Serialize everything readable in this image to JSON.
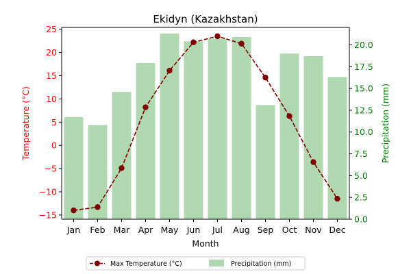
{
  "chart_data": {
    "type": "bar+line",
    "title": "Ekidyn (Kazakhstan)",
    "xlabel": "Month",
    "ylabel_left": "Temperature (°C)",
    "ylabel_right": "Precipitation (mm)",
    "categories": [
      "Jan",
      "Feb",
      "Mar",
      "Apr",
      "May",
      "Jun",
      "Jul",
      "Aug",
      "Sep",
      "Oct",
      "Nov",
      "Dec"
    ],
    "ylim_left": [
      -15.9,
      25.4
    ],
    "ylim_right": [
      0,
      22
    ],
    "yticks_left": [
      -15,
      -10,
      -5,
      0,
      5,
      10,
      15,
      20,
      25
    ],
    "yticks_left_labels": [
      "−15",
      "−10",
      "−5",
      "0",
      "5",
      "10",
      "15",
      "20",
      "25"
    ],
    "yticks_right": [
      0,
      2.5,
      5,
      7.5,
      10,
      12.5,
      15,
      17.5,
      20
    ],
    "yticks_right_labels": [
      "0.0",
      "2.5",
      "5.0",
      "7.5",
      "10.0",
      "12.5",
      "15.0",
      "17.5",
      "20.0"
    ],
    "series": [
      {
        "name": "Max Temperature (°C)",
        "kind": "line",
        "axis": "left",
        "color": "#800000",
        "values": [
          -14.0,
          -13.3,
          -4.9,
          8.2,
          16.1,
          22.2,
          23.5,
          21.9,
          14.6,
          6.3,
          -3.6,
          -11.5
        ]
      },
      {
        "name": "Precipitation (mm)",
        "kind": "bar",
        "axis": "right",
        "color": "#b0d9b1",
        "values": [
          11.7,
          10.8,
          14.6,
          17.9,
          21.3,
          20.4,
          20.7,
          20.9,
          13.1,
          19.0,
          18.7,
          16.3
        ]
      }
    ],
    "legend_position": "bottom-center",
    "grid": false,
    "left_tick_color": "#ff0000",
    "right_tick_color": "#008000"
  }
}
